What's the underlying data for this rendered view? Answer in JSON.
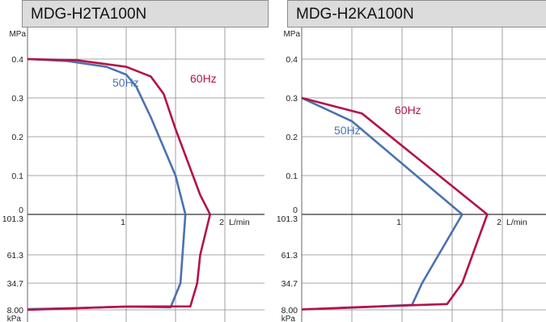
{
  "colors": {
    "50Hz": "#4a72b0",
    "60Hz": "#b3124a",
    "grid": "#8a8a8a",
    "header_bg": "#dcdcdc"
  },
  "chart_data": [
    {
      "type": "line",
      "title": "MDG-H2TA100N",
      "y_upper_unit": "MPa",
      "y_lower_unit": "kPa",
      "x_unit": "L/min",
      "y_upper_ticks": [
        "0.4",
        "0.3",
        "0.2",
        "0.1",
        "0"
      ],
      "y_lower_ticks": [
        "101.3",
        "61.3",
        "34.7",
        "8.00"
      ],
      "x_ticks": [
        "1",
        "2"
      ],
      "xlim": [
        0,
        2.2
      ],
      "ylim_pressure": [
        0,
        0.4
      ],
      "ylim_vacuum_kPa": [
        101.3,
        8.0
      ],
      "series": [
        {
          "name": "50Hz",
          "pressure": [
            [
              0,
              0.4
            ],
            [
              0.4,
              0.395
            ],
            [
              0.8,
              0.38
            ],
            [
              1.0,
              0.36
            ],
            [
              1.1,
              0.33
            ],
            [
              1.25,
              0.25
            ],
            [
              1.5,
              0.1
            ],
            [
              1.6,
              0.0
            ]
          ],
          "vacuum": [
            [
              1.6,
              101.3
            ],
            [
              1.55,
              34.7
            ],
            [
              1.45,
              10.5
            ],
            [
              1.0,
              11.2
            ],
            [
              0.5,
              9.8
            ],
            [
              0,
              8.7
            ]
          ]
        },
        {
          "name": "60Hz",
          "pressure": [
            [
              0,
              0.4
            ],
            [
              0.5,
              0.397
            ],
            [
              1.0,
              0.38
            ],
            [
              1.25,
              0.355
            ],
            [
              1.38,
              0.31
            ],
            [
              1.5,
              0.22
            ],
            [
              1.75,
              0.05
            ],
            [
              1.85,
              0.0
            ]
          ],
          "vacuum": [
            [
              1.85,
              101.3
            ],
            [
              1.75,
              61.3
            ],
            [
              1.72,
              34.7
            ],
            [
              1.65,
              11.5
            ],
            [
              1.0,
              11.3
            ],
            [
              0.5,
              9.7
            ],
            [
              0,
              8.0
            ]
          ]
        }
      ]
    },
    {
      "type": "line",
      "title": "MDG-H2KA100N",
      "y_upper_unit": "MPa",
      "y_lower_unit": "kPa",
      "x_unit": "L/min",
      "y_upper_ticks": [
        "0.4",
        "0.3",
        "0.2",
        "0.1",
        "0"
      ],
      "y_lower_ticks": [
        "101.3",
        "61.3",
        "34.7",
        "8.00"
      ],
      "x_ticks": [
        "1",
        "2"
      ],
      "xlim": [
        0,
        2.2
      ],
      "ylim_pressure": [
        0,
        0.4
      ],
      "ylim_vacuum_kPa": [
        101.3,
        8.0
      ],
      "series": [
        {
          "name": "50Hz",
          "pressure": [
            [
              0,
              0.3
            ],
            [
              0.5,
              0.24
            ],
            [
              1.6,
              0.0
            ]
          ],
          "vacuum": [
            [
              1.6,
              101.3
            ],
            [
              1.2,
              34.7
            ],
            [
              1.1,
              13.0
            ],
            [
              0.5,
              10.2
            ],
            [
              0,
              8.5
            ]
          ]
        },
        {
          "name": "60Hz",
          "pressure": [
            [
              0,
              0.3
            ],
            [
              0.6,
              0.26
            ],
            [
              1.85,
              0.0
            ]
          ],
          "vacuum": [
            [
              1.85,
              101.3
            ],
            [
              1.6,
              34.7
            ],
            [
              1.45,
              13.8
            ],
            [
              0.5,
              10.5
            ],
            [
              0,
              8.4
            ]
          ]
        }
      ]
    }
  ]
}
